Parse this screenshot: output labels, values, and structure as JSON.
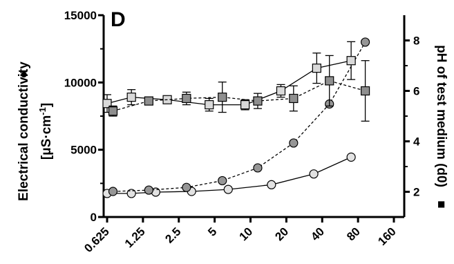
{
  "chart_data": {
    "type": "line",
    "panel_label": "D",
    "x": {
      "scale": "log2",
      "tick_labels": [
        "0.625",
        "1.25",
        "2.5",
        "5",
        "10",
        "20",
        "40",
        "80",
        "160"
      ],
      "range": [
        0.625,
        160
      ]
    },
    "y_left": {
      "label_line1": "Electrical conductivity",
      "label_line2": "[μS·cm",
      "label_sup": "-1",
      "label_end": "]",
      "label_symbol": "●",
      "ticks": [
        "0",
        "5000",
        "10000",
        "15000"
      ],
      "range": [
        0,
        15000
      ]
    },
    "y_right": {
      "label": "pH of test medium (d0)",
      "label_symbol": "■",
      "ticks": [
        "2",
        "4",
        "6",
        "8"
      ],
      "range": [
        1,
        9
      ]
    },
    "grid": false,
    "legend": "none",
    "series": [
      {
        "marker": "circle",
        "fill": "#e2e2e2",
        "line": "solid",
        "axis": "left",
        "x": [
          0.625,
          1.0,
          1.6,
          3.2,
          6.5,
          15,
          34,
          70
        ],
        "y": [
          1750,
          1750,
          1850,
          1900,
          2050,
          2400,
          3200,
          4450
        ]
      },
      {
        "marker": "circle",
        "fill": "#969696",
        "line": "dashed",
        "axis": "left",
        "x": [
          0.7,
          1.4,
          2.9,
          5.8,
          11.5,
          23,
          46,
          92
        ],
        "y": [
          1900,
          2000,
          2200,
          2700,
          3650,
          5500,
          8400,
          13000
        ]
      },
      {
        "marker": "square",
        "fill": "#d9d9d9",
        "line": "solid",
        "axis": "right",
        "x": [
          0.625,
          1.0,
          2.0,
          4.5,
          9.0,
          18,
          36,
          70
        ],
        "y": [
          5.5,
          5.75,
          5.65,
          5.45,
          5.45,
          6.0,
          6.9,
          7.2
        ],
        "err": [
          0.35,
          0.3,
          0.15,
          0.25,
          0.2,
          0.25,
          0.6,
          0.75
        ]
      },
      {
        "marker": "square",
        "fill": "#8f8f8f",
        "line": "dashed",
        "axis": "right",
        "x": [
          0.7,
          1.4,
          2.9,
          5.8,
          11.5,
          23,
          46,
          92
        ],
        "y": [
          5.2,
          5.6,
          5.7,
          5.75,
          5.6,
          5.7,
          6.4,
          6.0
        ],
        "err": [
          0.2,
          0.15,
          0.25,
          0.6,
          0.3,
          0.5,
          1.0,
          1.2
        ]
      }
    ]
  }
}
